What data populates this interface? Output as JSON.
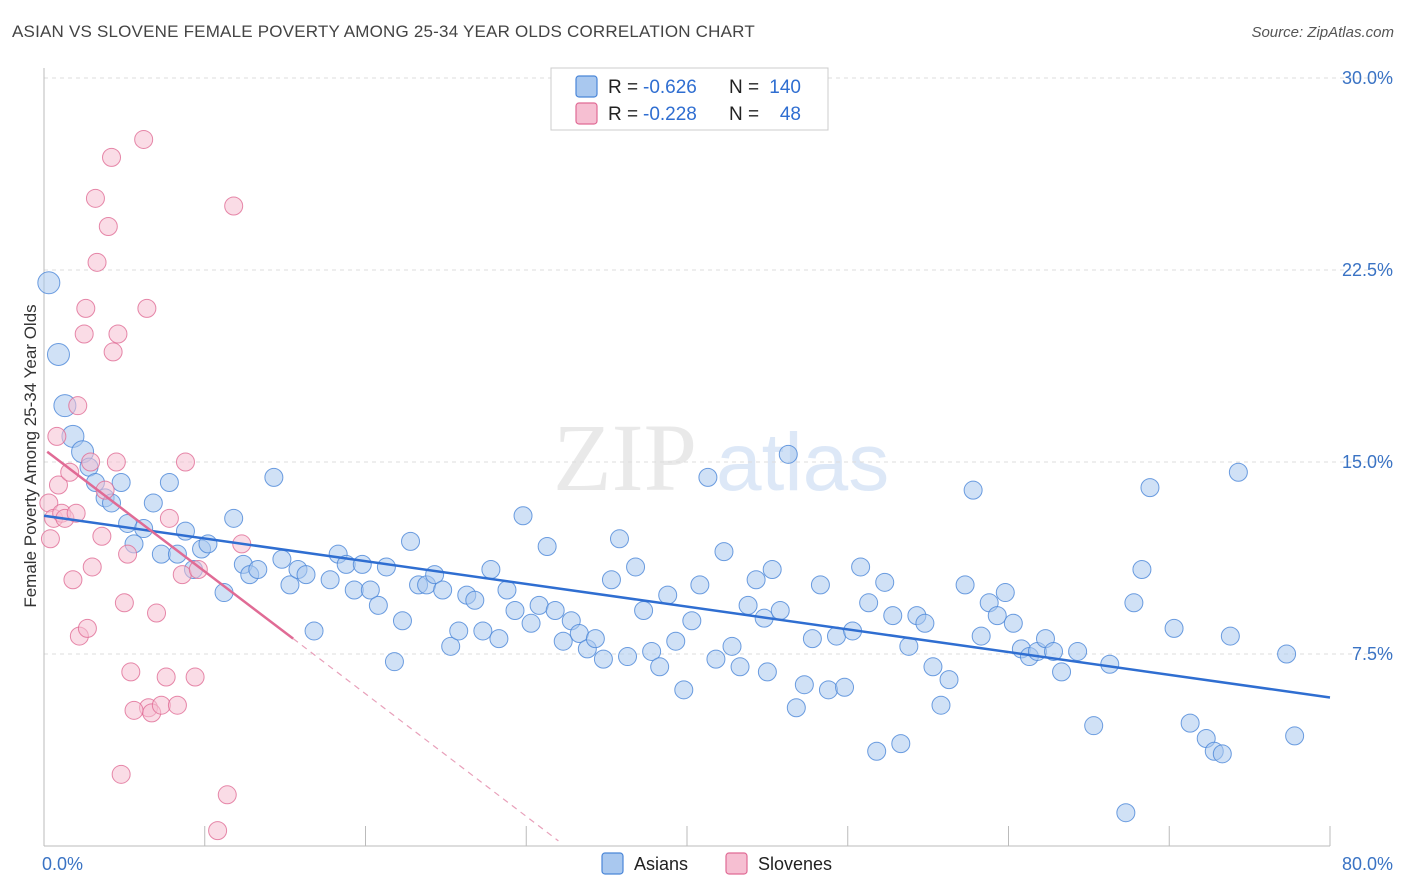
{
  "header": {
    "title": "ASIAN VS SLOVENE FEMALE POVERTY AMONG 25-34 YEAR OLDS CORRELATION CHART",
    "source": "Source: ZipAtlas.com"
  },
  "watermark": {
    "zip": "ZIP",
    "atlas": "atlas"
  },
  "colors": {
    "asians": "#4a86d8",
    "asians_fill": "#a9c8ef",
    "slovenes": "#e06b95",
    "slovenes_fill": "#f6bfd2",
    "tick_text": "#3a73c4"
  },
  "legend": {
    "rows": [
      {
        "r_label": "R = ",
        "r_value": "-0.626",
        "n_label": "N = ",
        "n_value": "140"
      },
      {
        "r_label": "R = ",
        "r_value": "-0.228",
        "n_label": "N = ",
        "n_value": "48"
      }
    ]
  },
  "chart_data": {
    "type": "scatter",
    "title": "ASIAN VS SLOVENE FEMALE POVERTY AMONG 25-34 YEAR OLDS CORRELATION CHART",
    "xlabel": "",
    "ylabel": "Female Poverty Among 25-34 Year Olds",
    "xlim": [
      0,
      80
    ],
    "ylim": [
      0,
      30
    ],
    "x_tick_labels": [
      "0.0%",
      "80.0%"
    ],
    "y_ticks": [
      7.5,
      15.0,
      22.5,
      30.0
    ],
    "y_tick_labels": [
      "7.5%",
      "15.0%",
      "22.5%",
      "30.0%"
    ],
    "grid": "horizontal dashed",
    "legend_position": "top-center",
    "series": [
      {
        "name": "Asians",
        "r": -0.626,
        "n": 140,
        "trend": {
          "x": [
            0,
            80
          ],
          "y": [
            12.9,
            5.8
          ]
        },
        "points": [
          [
            0.3,
            22.0
          ],
          [
            0.9,
            19.2
          ],
          [
            1.3,
            17.2
          ],
          [
            1.8,
            16.0
          ],
          [
            2.4,
            15.4
          ],
          [
            2.8,
            14.8
          ],
          [
            3.2,
            14.2
          ],
          [
            3.8,
            13.6
          ],
          [
            4.2,
            13.4
          ],
          [
            4.8,
            14.2
          ],
          [
            5.2,
            12.6
          ],
          [
            5.6,
            11.8
          ],
          [
            6.2,
            12.4
          ],
          [
            6.8,
            13.4
          ],
          [
            7.3,
            11.4
          ],
          [
            7.8,
            14.2
          ],
          [
            8.3,
            11.4
          ],
          [
            8.8,
            12.3
          ],
          [
            9.3,
            10.8
          ],
          [
            9.8,
            11.6
          ],
          [
            10.2,
            11.8
          ],
          [
            11.2,
            9.9
          ],
          [
            11.8,
            12.8
          ],
          [
            12.4,
            11.0
          ],
          [
            12.8,
            10.6
          ],
          [
            13.3,
            10.8
          ],
          [
            14.3,
            14.4
          ],
          [
            14.8,
            11.2
          ],
          [
            15.3,
            10.2
          ],
          [
            15.8,
            10.8
          ],
          [
            16.3,
            10.6
          ],
          [
            16.8,
            8.4
          ],
          [
            17.8,
            10.4
          ],
          [
            18.3,
            11.4
          ],
          [
            18.8,
            11.0
          ],
          [
            19.3,
            10.0
          ],
          [
            19.8,
            11.0
          ],
          [
            20.3,
            10.0
          ],
          [
            20.8,
            9.4
          ],
          [
            21.3,
            10.9
          ],
          [
            21.8,
            7.2
          ],
          [
            22.3,
            8.8
          ],
          [
            22.8,
            11.9
          ],
          [
            23.3,
            10.2
          ],
          [
            23.8,
            10.2
          ],
          [
            24.3,
            10.6
          ],
          [
            24.8,
            10.0
          ],
          [
            25.3,
            7.8
          ],
          [
            25.8,
            8.4
          ],
          [
            26.3,
            9.8
          ],
          [
            26.8,
            9.6
          ],
          [
            27.3,
            8.4
          ],
          [
            27.8,
            10.8
          ],
          [
            28.3,
            8.1
          ],
          [
            28.8,
            10.0
          ],
          [
            29.3,
            9.2
          ],
          [
            29.8,
            12.9
          ],
          [
            30.3,
            8.7
          ],
          [
            30.8,
            9.4
          ],
          [
            31.3,
            11.7
          ],
          [
            31.8,
            9.2
          ],
          [
            32.3,
            8.0
          ],
          [
            32.8,
            8.8
          ],
          [
            33.3,
            8.3
          ],
          [
            33.8,
            7.7
          ],
          [
            34.3,
            8.1
          ],
          [
            34.8,
            7.3
          ],
          [
            35.3,
            10.4
          ],
          [
            35.8,
            12.0
          ],
          [
            36.3,
            7.4
          ],
          [
            36.8,
            10.9
          ],
          [
            37.3,
            9.2
          ],
          [
            37.8,
            7.6
          ],
          [
            38.3,
            7.0
          ],
          [
            38.8,
            9.8
          ],
          [
            39.3,
            8.0
          ],
          [
            39.8,
            6.1
          ],
          [
            40.3,
            8.8
          ],
          [
            40.8,
            10.2
          ],
          [
            41.3,
            14.4
          ],
          [
            41.8,
            7.3
          ],
          [
            42.3,
            11.5
          ],
          [
            42.8,
            7.8
          ],
          [
            43.3,
            7.0
          ],
          [
            43.8,
            9.4
          ],
          [
            44.3,
            10.4
          ],
          [
            44.8,
            8.9
          ],
          [
            45.3,
            10.8
          ],
          [
            45.8,
            9.2
          ],
          [
            46.3,
            15.3
          ],
          [
            46.8,
            5.4
          ],
          [
            47.3,
            6.3
          ],
          [
            47.8,
            8.1
          ],
          [
            48.3,
            10.2
          ],
          [
            48.8,
            6.1
          ],
          [
            49.3,
            8.2
          ],
          [
            49.8,
            6.2
          ],
          [
            50.3,
            8.4
          ],
          [
            50.8,
            10.9
          ],
          [
            51.3,
            9.5
          ],
          [
            51.8,
            3.7
          ],
          [
            52.3,
            10.3
          ],
          [
            52.8,
            9.0
          ],
          [
            53.3,
            4.0
          ],
          [
            53.8,
            7.8
          ],
          [
            54.3,
            9.0
          ],
          [
            54.8,
            8.7
          ],
          [
            55.3,
            7.0
          ],
          [
            55.8,
            5.5
          ],
          [
            57.3,
            10.2
          ],
          [
            57.8,
            13.9
          ],
          [
            58.3,
            8.2
          ],
          [
            58.8,
            9.5
          ],
          [
            59.3,
            9.0
          ],
          [
            59.8,
            9.9
          ],
          [
            60.3,
            8.7
          ],
          [
            60.8,
            7.7
          ],
          [
            61.3,
            7.4
          ],
          [
            61.8,
            7.6
          ],
          [
            62.3,
            8.1
          ],
          [
            62.8,
            7.6
          ],
          [
            63.3,
            6.8
          ],
          [
            64.3,
            7.6
          ],
          [
            65.3,
            4.7
          ],
          [
            66.3,
            7.1
          ],
          [
            67.3,
            1.3
          ],
          [
            67.8,
            9.5
          ],
          [
            68.3,
            10.8
          ],
          [
            68.8,
            14.0
          ],
          [
            71.3,
            4.8
          ],
          [
            72.3,
            4.2
          ],
          [
            72.8,
            3.7
          ],
          [
            73.3,
            3.6
          ],
          [
            73.8,
            8.2
          ],
          [
            74.3,
            14.6
          ],
          [
            77.3,
            7.5
          ],
          [
            77.8,
            4.3
          ],
          [
            70.3,
            8.5
          ],
          [
            56.3,
            6.5
          ],
          [
            45.0,
            6.8
          ]
        ]
      },
      {
        "name": "Slovenes",
        "r": -0.228,
        "n": 48,
        "trend": {
          "x": [
            0.2,
            15.5
          ],
          "y": [
            15.4,
            8.1
          ]
        },
        "trend_extended": {
          "x": [
            15.5,
            32.0
          ],
          "y": [
            8.1,
            0.2
          ]
        },
        "points": [
          [
            0.3,
            13.4
          ],
          [
            0.4,
            12.0
          ],
          [
            0.6,
            12.8
          ],
          [
            0.8,
            16.0
          ],
          [
            0.9,
            14.1
          ],
          [
            1.1,
            13.0
          ],
          [
            1.3,
            12.8
          ],
          [
            1.6,
            14.6
          ],
          [
            1.8,
            10.4
          ],
          [
            2.0,
            13.0
          ],
          [
            2.1,
            17.2
          ],
          [
            2.2,
            8.2
          ],
          [
            2.5,
            20.0
          ],
          [
            2.6,
            21.0
          ],
          [
            2.7,
            8.5
          ],
          [
            2.9,
            15.0
          ],
          [
            3.0,
            10.9
          ],
          [
            3.2,
            25.3
          ],
          [
            3.3,
            22.8
          ],
          [
            3.6,
            12.1
          ],
          [
            3.8,
            13.9
          ],
          [
            4.0,
            24.2
          ],
          [
            4.2,
            26.9
          ],
          [
            4.3,
            19.3
          ],
          [
            4.5,
            15.0
          ],
          [
            4.6,
            20.0
          ],
          [
            4.8,
            2.8
          ],
          [
            5.0,
            9.5
          ],
          [
            5.2,
            11.4
          ],
          [
            5.4,
            6.8
          ],
          [
            6.2,
            27.6
          ],
          [
            6.4,
            21.0
          ],
          [
            6.5,
            5.4
          ],
          [
            6.7,
            5.2
          ],
          [
            7.0,
            9.1
          ],
          [
            7.3,
            5.5
          ],
          [
            7.6,
            6.6
          ],
          [
            7.8,
            12.8
          ],
          [
            8.3,
            5.5
          ],
          [
            8.6,
            10.6
          ],
          [
            8.8,
            15.0
          ],
          [
            9.4,
            6.6
          ],
          [
            9.6,
            10.8
          ],
          [
            10.8,
            0.6
          ],
          [
            11.4,
            2.0
          ],
          [
            11.8,
            25.0
          ],
          [
            12.3,
            11.8
          ],
          [
            5.6,
            5.3
          ]
        ]
      }
    ]
  },
  "bottom_legend": {
    "items": [
      "Asians",
      "Slovenes"
    ]
  }
}
